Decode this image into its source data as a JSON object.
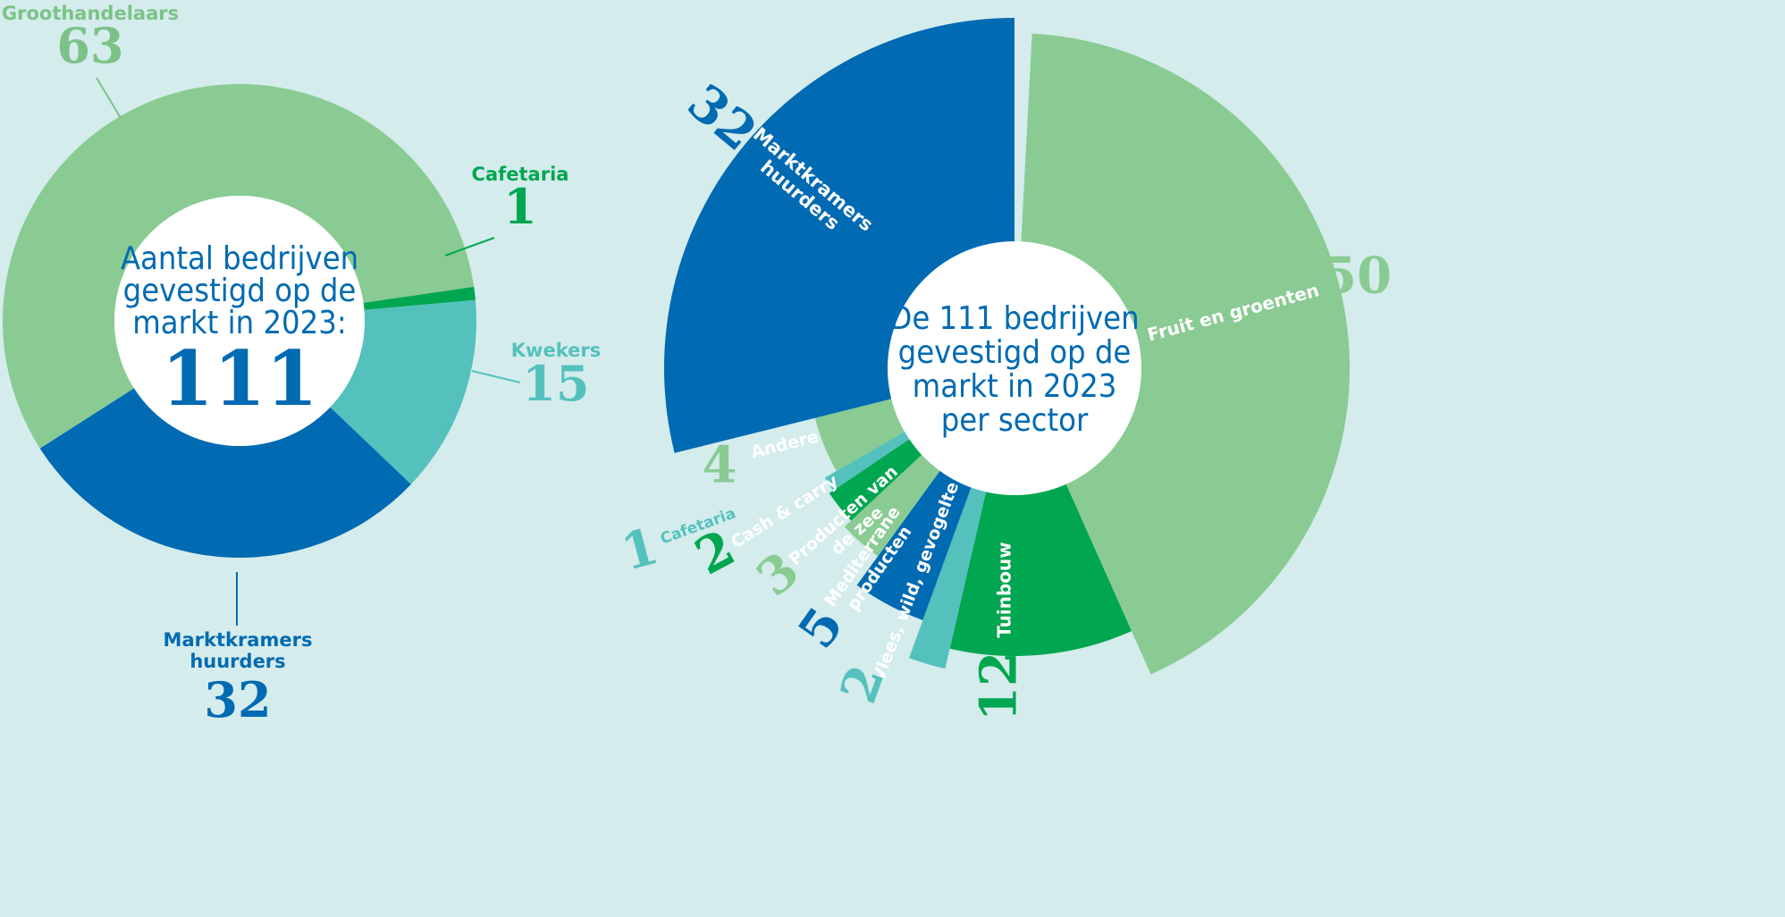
{
  "colors": {
    "background": "#d4ecec",
    "light_green": "#89cb93",
    "green": "#00a650",
    "teal": "#55c1bd",
    "blue": "#006ab2",
    "white": "#ffffff"
  },
  "chart_data": [
    {
      "type": "pie",
      "variant": "donut",
      "center_text": {
        "lines": [
          "Aantal bedrijven",
          "gevestigd op de",
          "markt in 2023:"
        ],
        "total": "111"
      },
      "slices": [
        {
          "label": "Groothandelaars",
          "value": 63,
          "color": "#89cb93"
        },
        {
          "label": "Cafetaria",
          "value": 1,
          "color": "#00a650"
        },
        {
          "label": "Kwekers",
          "value": 15,
          "color": "#55c1bd"
        },
        {
          "label": "Marktkramers huurders",
          "value": 32,
          "color": "#006ab2"
        }
      ]
    },
    {
      "type": "pie",
      "variant": "polar-area",
      "center_text": {
        "lines": [
          "De 111 bedrijven",
          "gevestigd op de",
          "markt in 2023",
          "per sector"
        ]
      },
      "slices": [
        {
          "label": "Fruit en groenten",
          "value": 50,
          "color": "#89cb93"
        },
        {
          "label": "Tuinbouw",
          "value": 12,
          "color": "#00a650"
        },
        {
          "label": "Vlees, wild, gevogelte",
          "value": 2,
          "color": "#55c1bd"
        },
        {
          "label": "Mediterrane producten",
          "value": 5,
          "color": "#006ab2"
        },
        {
          "label": "Producten van de zee",
          "value": 3,
          "color": "#89cb93"
        },
        {
          "label": "Cash & carry",
          "value": 2,
          "color": "#00a650"
        },
        {
          "label": "Cafetaria",
          "value": 1,
          "color": "#55c1bd"
        },
        {
          "label": "Andere",
          "value": 4,
          "color": "#89cb93"
        },
        {
          "label": "Marktkramers huurders",
          "value": 32,
          "color": "#006ab2"
        }
      ]
    }
  ]
}
